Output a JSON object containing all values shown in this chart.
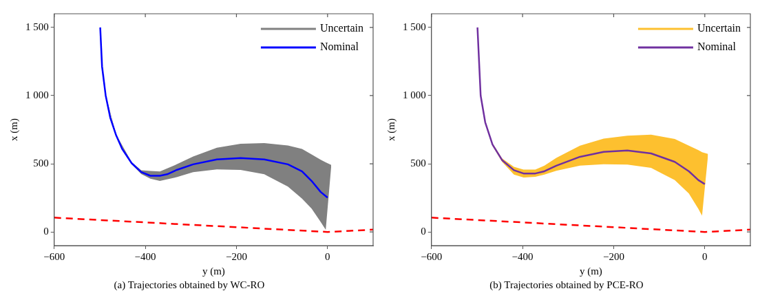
{
  "chart_data": [
    {
      "type": "line",
      "title": "(a) Trajectories obtained by WC-RO",
      "xlabel": "y (m)",
      "ylabel": "x (m)",
      "xlim": [
        -600,
        100
      ],
      "ylim": [
        -100,
        1600
      ],
      "xticks": [
        {
          "value": -600,
          "label": "−600"
        },
        {
          "value": -400,
          "label": "−400"
        },
        {
          "value": -200,
          "label": "−200"
        },
        {
          "value": 0,
          "label": "0"
        }
      ],
      "yticks": [
        {
          "value": 0,
          "label": "0"
        },
        {
          "value": 500,
          "label": "500"
        },
        {
          "value": 1000,
          "label": "1 000"
        },
        {
          "value": 1500,
          "label": "1 500"
        }
      ],
      "grid": false,
      "legend": "top right",
      "marker": "none",
      "series": [
        {
          "name": "Uncertain",
          "type": "line",
          "color": "#808080",
          "x": [
            -499,
            -487,
            -464,
            -430,
            -409,
            -389,
            -368,
            -331,
            -295,
            -243,
            -191,
            -139,
            -87,
            -56,
            -35,
            -15,
            -4,
            8
          ],
          "values": [
            null,
            null,
            null,
            null,
            null,
            null,
            null,
            null,
            null,
            null,
            null,
            null,
            null,
            null,
            null,
            null,
            null,
            null
          ],
          "lower": [
            1500,
            995,
            700,
            496,
            425,
            390,
            374,
            402,
            439,
            459,
            455,
            423,
            333,
            244,
            171,
            73,
            16,
            480
          ],
          "upper": [
            1500,
            1005,
            715,
            512,
            452,
            447,
            444,
            496,
            553,
            618,
            646,
            652,
            634,
            609,
            569,
            529,
            510,
            491
          ]
        },
        {
          "name": "Nominal",
          "type": "line",
          "color": "#0000ff",
          "x": [
            -499,
            -495,
            -487,
            -477,
            -464,
            -451,
            -430,
            -409,
            -389,
            -368,
            -352,
            -331,
            -295,
            -243,
            -191,
            -139,
            -87,
            -56,
            -35,
            -15,
            0
          ],
          "values": [
            1500,
            1212,
            1000,
            838,
            708,
            610,
            504,
            439,
            412,
            412,
            423,
            455,
            496,
            532,
            542,
            532,
            496,
            444,
            374,
            293,
            252
          ]
        },
        {
          "type": "line",
          "color": "#ff0000",
          "line_style": "dashed",
          "x": [
            -600,
            0,
            100
          ],
          "values": [
            105,
            0,
            17
          ]
        }
      ]
    },
    {
      "type": "line",
      "title": "(b) Trajectories obtained by PCE-RO",
      "xlabel": "y (m)",
      "ylabel": "x (m)",
      "xlim": [
        -600,
        100
      ],
      "ylim": [
        -100,
        1600
      ],
      "xticks": [
        {
          "value": -600,
          "label": "−600"
        },
        {
          "value": -400,
          "label": "−400"
        },
        {
          "value": -200,
          "label": "−200"
        },
        {
          "value": 0,
          "label": "0"
        }
      ],
      "yticks": [
        {
          "value": 0,
          "label": "0"
        },
        {
          "value": 500,
          "label": "500"
        },
        {
          "value": 1000,
          "label": "1 000"
        },
        {
          "value": 1500,
          "label": "1 500"
        }
      ],
      "grid": false,
      "legend": "top right",
      "marker": "none",
      "series": [
        {
          "name": "Uncertain",
          "type": "line",
          "color": "#fdc02f",
          "x": [
            -499,
            -492,
            -482,
            -466,
            -445,
            -419,
            -398,
            -372,
            -352,
            -326,
            -274,
            -222,
            -170,
            -118,
            -66,
            -35,
            -14,
            -6,
            7
          ],
          "values": [
            null,
            null,
            null,
            null,
            null,
            null,
            null,
            null,
            null,
            null,
            null,
            null,
            null,
            null,
            null,
            null,
            null,
            null,
            null
          ],
          "lower": [
            1500,
            995,
            796,
            632,
            514,
            421,
            399,
            404,
            421,
            448,
            486,
            497,
            494,
            470,
            380,
            282,
            168,
            119,
            560
          ],
          "upper": [
            1500,
            1005,
            812,
            650,
            540,
            478,
            458,
            458,
            486,
            543,
            633,
            685,
            706,
            714,
            682,
            633,
            600,
            585,
            572
          ]
        },
        {
          "name": "Nominal",
          "type": "line",
          "color": "#7030a0",
          "x": [
            -499,
            -492,
            -482,
            -466,
            -445,
            -419,
            -398,
            -372,
            -352,
            -326,
            -274,
            -222,
            -170,
            -118,
            -66,
            -35,
            -14,
            0
          ],
          "values": [
            1500,
            1000,
            804,
            641,
            527,
            453,
            429,
            429,
            445,
            486,
            551,
            587,
            597,
            576,
            514,
            445,
            380,
            351
          ]
        },
        {
          "type": "line",
          "color": "#ff0000",
          "line_style": "dashed",
          "x": [
            -600,
            0,
            100
          ],
          "values": [
            105,
            0,
            17
          ]
        }
      ]
    }
  ]
}
